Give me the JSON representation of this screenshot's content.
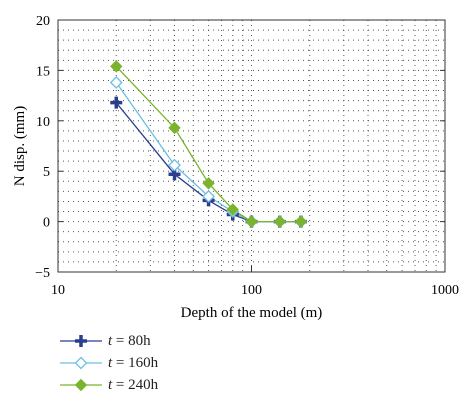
{
  "chart_data": {
    "type": "line",
    "xscale": "log",
    "xlim": [
      10,
      1000
    ],
    "ylim": [
      -5,
      20
    ],
    "xlabel": "Depth of the model (m)",
    "ylabel": "N disp. (mm)",
    "xticks": [
      10,
      100,
      1000
    ],
    "xtick_labels": [
      "10",
      "100",
      "1000"
    ],
    "yticks": [
      -5,
      0,
      5,
      10,
      15,
      20
    ],
    "ytick_labels": [
      "−5",
      "0",
      "5",
      "10",
      "15",
      "20"
    ],
    "grid": "dotted",
    "legend_position": "below",
    "series": [
      {
        "name": "t = 80h",
        "name_var": "t",
        "name_rest": " = 80h",
        "color": "#2a3e8f",
        "marker": "plus",
        "x": [
          20,
          40,
          60,
          80,
          100,
          140,
          180
        ],
        "y": [
          11.8,
          4.7,
          2.1,
          0.7,
          0.0,
          0.0,
          0.0
        ]
      },
      {
        "name": "t = 160h",
        "name_var": "t",
        "name_rest": " = 160h",
        "color": "#6cbfe3",
        "marker": "diamond-open",
        "x": [
          20,
          40,
          60,
          80,
          100,
          140,
          180
        ],
        "y": [
          13.8,
          5.6,
          2.5,
          1.0,
          0.0,
          0.0,
          0.0
        ]
      },
      {
        "name": "t = 240h",
        "name_var": "t",
        "name_rest": " = 240h",
        "color": "#7ab32e",
        "marker": "diamond",
        "x": [
          20,
          40,
          60,
          80,
          100,
          140,
          180
        ],
        "y": [
          15.4,
          9.3,
          3.8,
          1.2,
          0.0,
          0.0,
          0.0
        ]
      }
    ]
  }
}
